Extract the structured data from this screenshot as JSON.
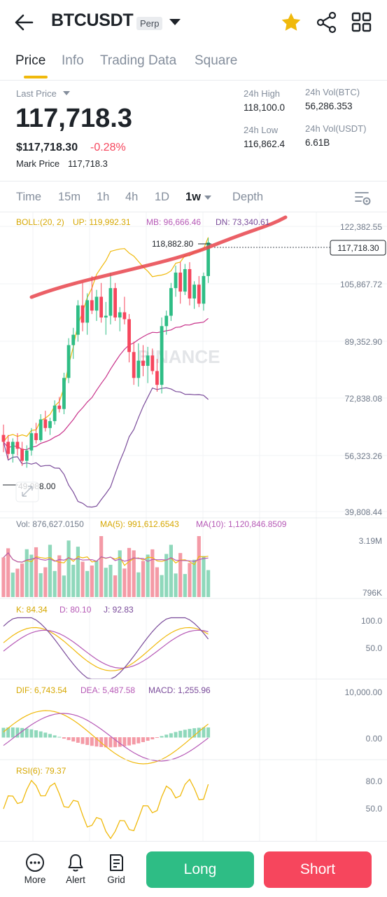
{
  "header": {
    "symbol": "BTCUSDT",
    "badge": "Perp",
    "icons": [
      "back-arrow-icon",
      "star-icon",
      "share-icon",
      "grid-icon"
    ]
  },
  "tabs": [
    {
      "label": "Price",
      "active": true
    },
    {
      "label": "Info",
      "active": false
    },
    {
      "label": "Trading Data",
      "active": false
    },
    {
      "label": "Square",
      "active": false
    }
  ],
  "ticker": {
    "last_price_label": "Last Price",
    "last_price": "117,718.3",
    "usd_price": "$117,718.30",
    "change": "-0.28%",
    "mark_price_label": "Mark Price",
    "mark_price": "117,718.3",
    "high_label": "24h High",
    "high": "118,100.0",
    "low_label": "24h Low",
    "low": "116,862.4",
    "vol_btc_label": "24h Vol(BTC)",
    "vol_btc": "56,286.353",
    "vol_usdt_label": "24h Vol(USDT)",
    "vol_usdt": "6.61B"
  },
  "intervals": [
    {
      "label": "Time",
      "active": false
    },
    {
      "label": "15m",
      "active": false
    },
    {
      "label": "1h",
      "active": false
    },
    {
      "label": "4h",
      "active": false
    },
    {
      "label": "1D",
      "active": false
    },
    {
      "label": "1w",
      "active": true
    },
    {
      "label": "Depth",
      "active": false
    }
  ],
  "chart": {
    "watermark": "BINANCE",
    "boll_legend": {
      "boll": "BOLL:(20, 2)",
      "up": "UP: 119,992.31",
      "mb": "MB: 96,666.46",
      "dn": "DN: 73,340.61"
    },
    "price_axis": [
      "122,382.55",
      "105,867.72",
      "89,352.90",
      "72,838.08",
      "56,323.26",
      "39,808.44"
    ],
    "current_price_tag": "117,718.30",
    "high_marker": "118,882.80",
    "low_marker": "49,088.00",
    "vol_legend": {
      "vol": "Vol: 876,627.0150",
      "ma5": "MA(5): 991,612.6543",
      "ma10": "MA(10): 1,120,846.8509"
    },
    "vol_axis": [
      "3.19M",
      "796K"
    ],
    "kdj_legend": {
      "k": "K: 84.34",
      "d": "D: 80.10",
      "j": "J: 92.83"
    },
    "kdj_axis": [
      "100.0",
      "50.0"
    ],
    "macd_legend": {
      "dif": "DIF: 6,743.54",
      "dea": "DEA: 5,487.58",
      "macd": "MACD: 1,255.96"
    },
    "macd_axis": [
      "10,000.00",
      "0.00"
    ],
    "rsi_legend": {
      "rsi": "RSI(6): 79.37"
    },
    "rsi_axis": [
      "80.0",
      "50.0"
    ],
    "colors": {
      "up": "#2ebd85",
      "down": "#f6465d",
      "yellow": "#f0b90b",
      "purple": "#b659b6",
      "mb": "#c8328a",
      "dn": "#7a4b9a",
      "annotation": "#e8444c"
    }
  },
  "chart_data": {
    "type": "candlestick",
    "interval": "1w",
    "ohlc_approx": [
      [
        62000,
        65000,
        57000,
        60000
      ],
      [
        60000,
        62000,
        55000,
        56500
      ],
      [
        56500,
        61000,
        54000,
        60000
      ],
      [
        60000,
        62500,
        56000,
        58000
      ],
      [
        58000,
        60000,
        53000,
        54500
      ],
      [
        54500,
        59000,
        52500,
        57500
      ],
      [
        57500,
        64000,
        56000,
        62500
      ],
      [
        62500,
        65500,
        59500,
        60500
      ],
      [
        60500,
        68000,
        60000,
        66500
      ],
      [
        66500,
        69000,
        63000,
        64000
      ],
      [
        64000,
        67000,
        62000,
        66000
      ],
      [
        66000,
        72000,
        65000,
        70500
      ],
      [
        70500,
        73000,
        68500,
        69500
      ],
      [
        69500,
        80000,
        68000,
        78500
      ],
      [
        78500,
        90000,
        77000,
        88000
      ],
      [
        88000,
        93000,
        84000,
        91000
      ],
      [
        91000,
        101000,
        89000,
        99500
      ],
      [
        99500,
        106000,
        92000,
        94500
      ],
      [
        94500,
        103000,
        91000,
        101000
      ],
      [
        101000,
        108000,
        97000,
        98000
      ],
      [
        98000,
        104000,
        95000,
        102000
      ],
      [
        102000,
        106000,
        94500,
        96000
      ],
      [
        96000,
        100500,
        91000,
        96500
      ],
      [
        96500,
        109000,
        94000,
        104500
      ],
      [
        104500,
        106000,
        95000,
        96000
      ],
      [
        96000,
        99000,
        92000,
        97500
      ],
      [
        97500,
        102000,
        94000,
        95500
      ],
      [
        95500,
        97000,
        83000,
        86000
      ],
      [
        86000,
        89000,
        76500,
        78500
      ],
      [
        78500,
        88500,
        76000,
        83500
      ],
      [
        83500,
        88000,
        79000,
        82000
      ],
      [
        82000,
        87500,
        77000,
        85000
      ],
      [
        85000,
        87000,
        79500,
        80500
      ],
      [
        80500,
        84000,
        74500,
        76500
      ],
      [
        76500,
        96000,
        74000,
        93500
      ],
      [
        93500,
        98000,
        91000,
        96500
      ],
      [
        96500,
        106000,
        95000,
        104500
      ],
      [
        104500,
        111000,
        102000,
        109000
      ],
      [
        109000,
        112000,
        100000,
        103500
      ],
      [
        103500,
        111500,
        102500,
        110000
      ],
      [
        110000,
        112000,
        99500,
        101500
      ],
      [
        101500,
        106500,
        98500,
        105500
      ],
      [
        105500,
        108000,
        99000,
        100000
      ],
      [
        100000,
        109000,
        98000,
        108000
      ],
      [
        108000,
        119000,
        106000,
        117718
      ]
    ],
    "price_range": [
      39808.44,
      122382.55
    ]
  },
  "bottom": {
    "more": "More",
    "alert": "Alert",
    "grid": "Grid",
    "long": "Long",
    "short": "Short"
  }
}
